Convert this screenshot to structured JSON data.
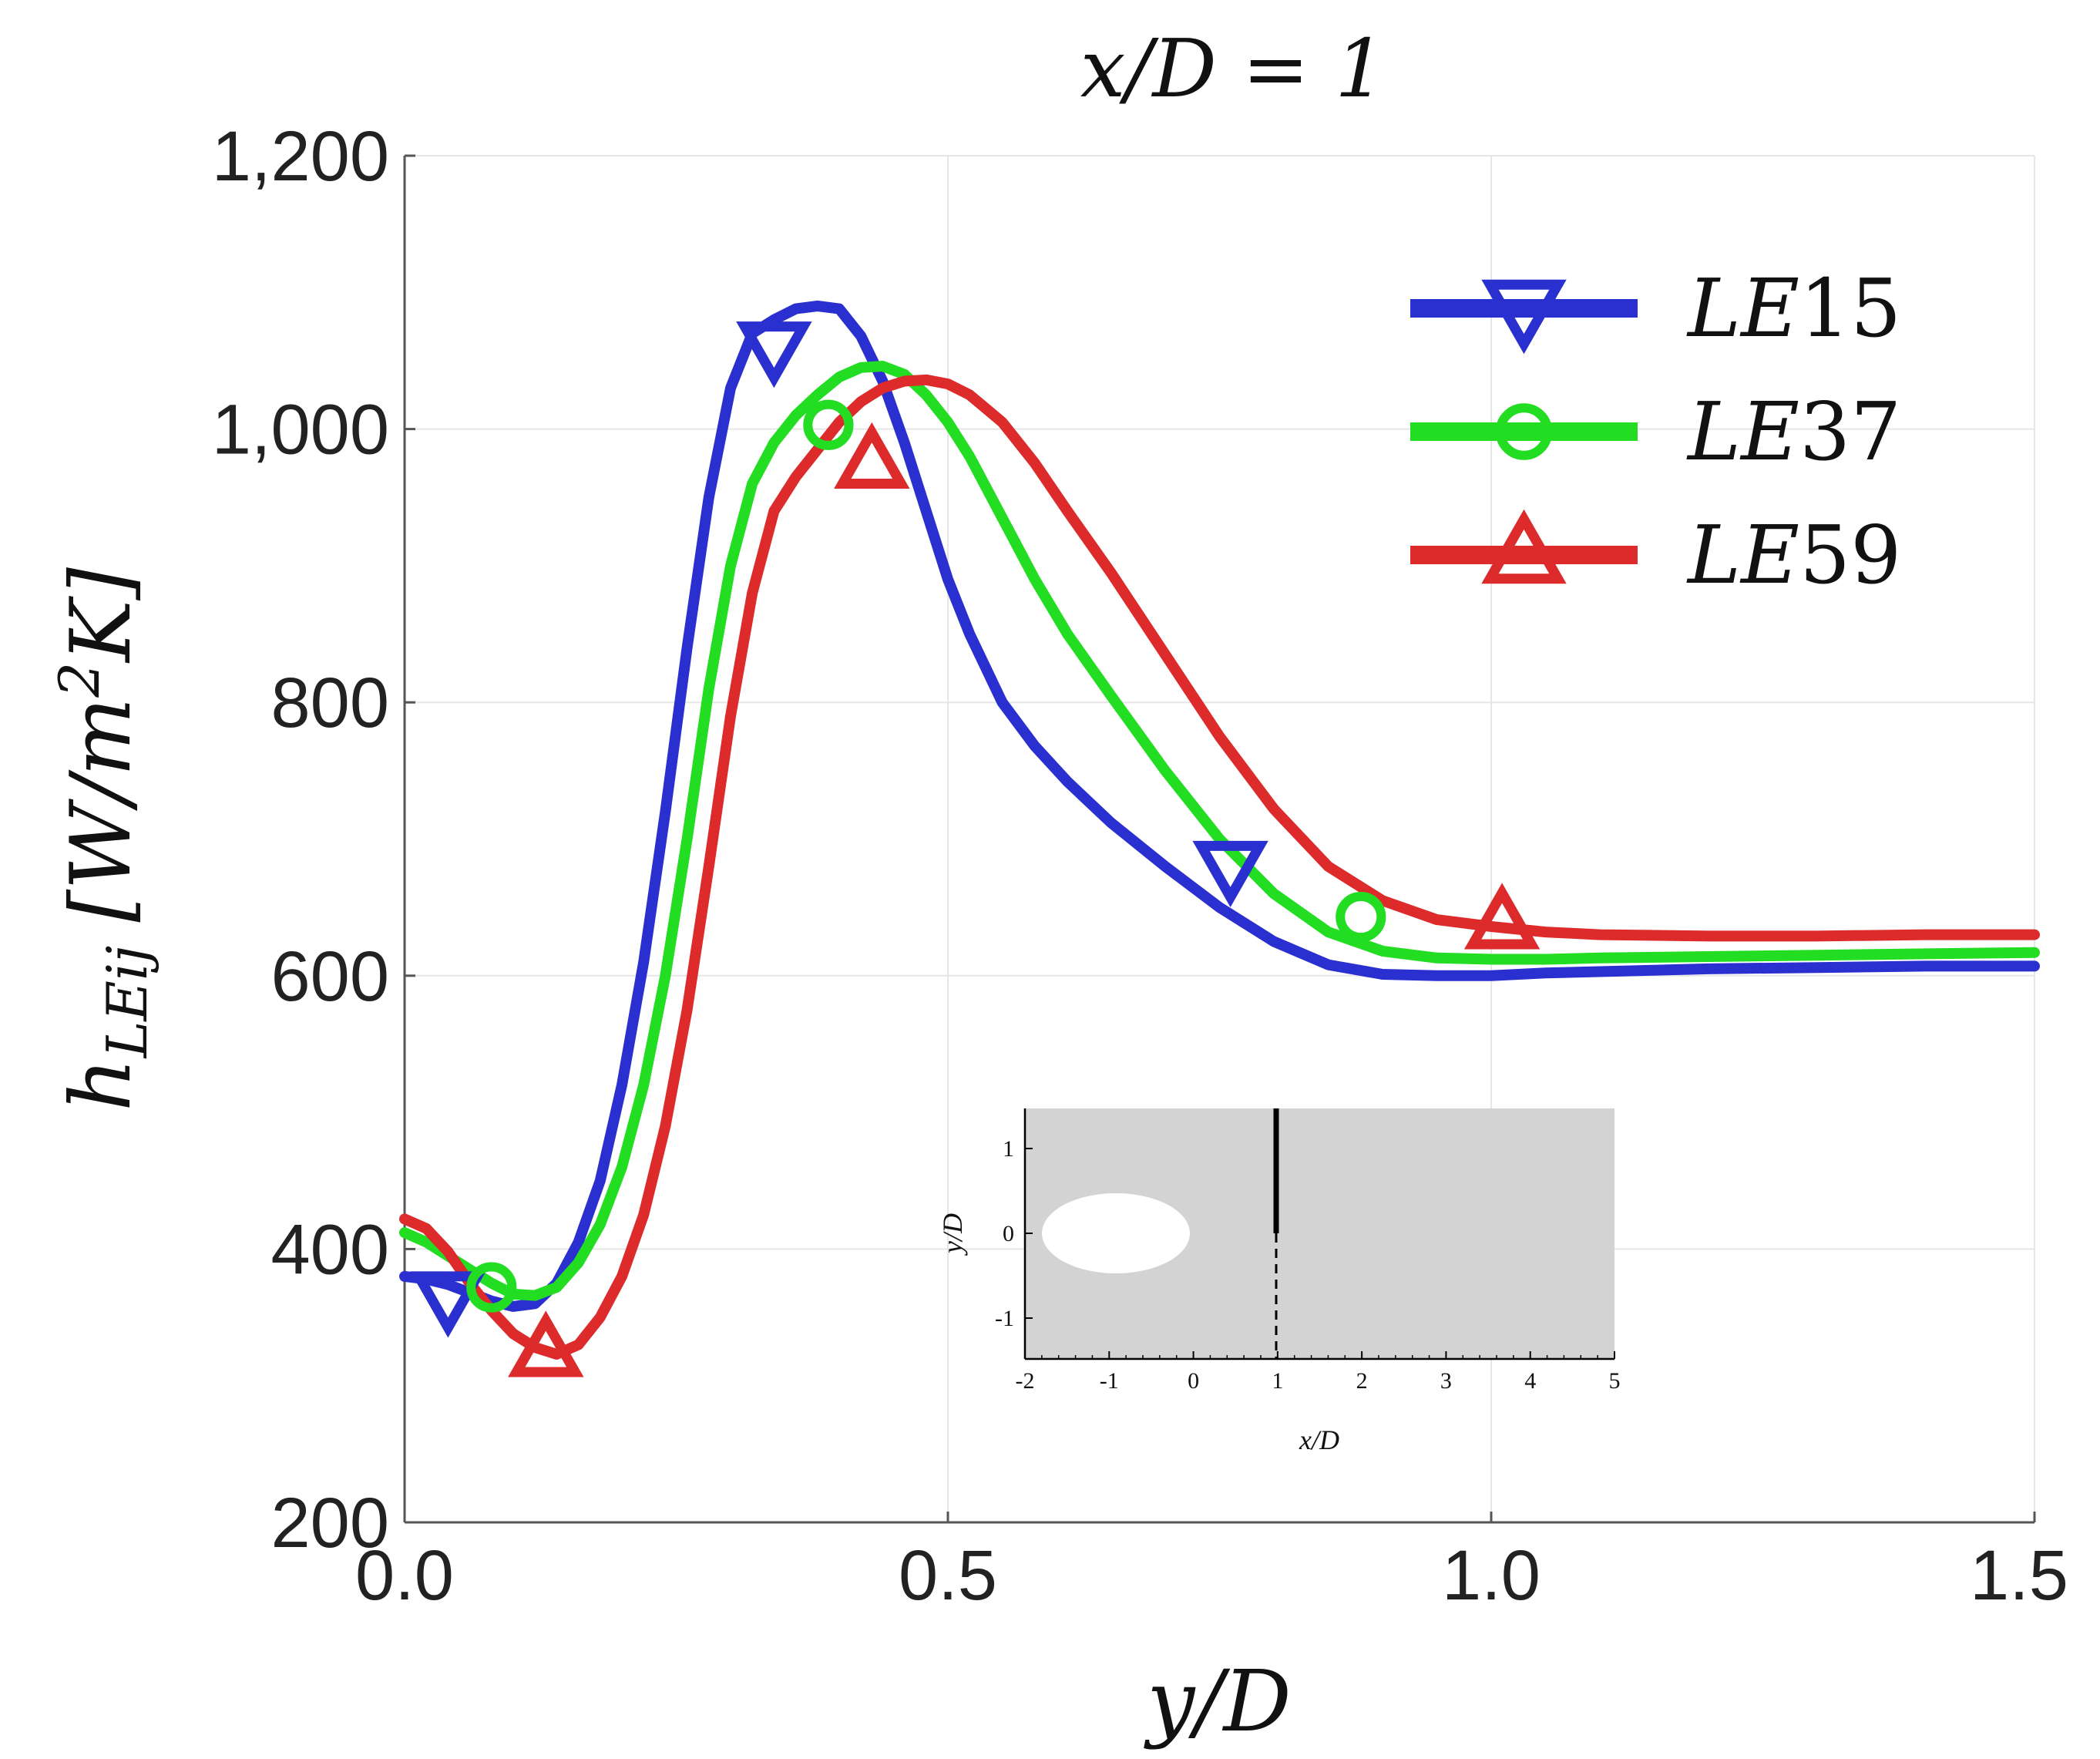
{
  "chart_data": {
    "type": "line",
    "title": "x/D = 1",
    "xlabel": "y/D",
    "ylabel": "h_LEij [W/m^2K]",
    "ylabel_parts": {
      "symbol": "h",
      "subscript": "LEij",
      "units": "[W/m",
      "units_power": "2",
      "units_end": "K]"
    },
    "xlim": [
      0,
      1.5
    ],
    "ylim": [
      200,
      1200
    ],
    "x_ticks": [
      0,
      0.5,
      1,
      1.5
    ],
    "x_tick_labels": [
      "0.0",
      "0.5",
      "1.0",
      "1.5"
    ],
    "y_ticks": [
      200,
      400,
      600,
      800,
      1000,
      1200
    ],
    "y_tick_labels": [
      "200",
      "400",
      "600",
      "800",
      "1,000",
      "1,200"
    ],
    "grid": true,
    "legend_position": "top-right",
    "series": [
      {
        "name": "LE15",
        "label_prefix": "LE",
        "label_number": "15",
        "color": "#2a2fd0",
        "marker": "triangle-down",
        "x": [
          0,
          0.02,
          0.04,
          0.06,
          0.08,
          0.1,
          0.12,
          0.14,
          0.16,
          0.18,
          0.2,
          0.22,
          0.24,
          0.26,
          0.28,
          0.3,
          0.32,
          0.34,
          0.36,
          0.38,
          0.4,
          0.42,
          0.44,
          0.46,
          0.48,
          0.5,
          0.52,
          0.55,
          0.58,
          0.61,
          0.65,
          0.7,
          0.75,
          0.8,
          0.85,
          0.9,
          0.95,
          1.0,
          1.05,
          1.1,
          1.2,
          1.3,
          1.4,
          1.5
        ],
        "y": [
          380,
          378,
          374,
          368,
          362,
          358,
          360,
          375,
          405,
          450,
          520,
          610,
          720,
          840,
          950,
          1030,
          1070,
          1080,
          1088,
          1090,
          1088,
          1068,
          1035,
          990,
          940,
          890,
          850,
          800,
          768,
          742,
          712,
          680,
          650,
          625,
          608,
          601,
          600,
          600,
          602,
          603,
          605,
          606,
          607,
          607
        ],
        "markers_x": [
          0.04,
          0.34,
          0.76
        ],
        "markers_y": [
          365,
          1060,
          680
        ]
      },
      {
        "name": "LE37",
        "label_prefix": "LE",
        "label_number": "37",
        "color": "#22dd22",
        "marker": "circle",
        "x": [
          0,
          0.02,
          0.04,
          0.06,
          0.08,
          0.1,
          0.12,
          0.14,
          0.16,
          0.18,
          0.2,
          0.22,
          0.24,
          0.26,
          0.28,
          0.3,
          0.32,
          0.34,
          0.36,
          0.38,
          0.4,
          0.42,
          0.44,
          0.46,
          0.48,
          0.5,
          0.52,
          0.55,
          0.58,
          0.61,
          0.65,
          0.7,
          0.75,
          0.8,
          0.85,
          0.9,
          0.95,
          1.0,
          1.05,
          1.1,
          1.2,
          1.3,
          1.4,
          1.5
        ],
        "y": [
          412,
          405,
          395,
          385,
          375,
          367,
          366,
          372,
          390,
          418,
          460,
          520,
          600,
          700,
          810,
          900,
          960,
          990,
          1010,
          1025,
          1038,
          1045,
          1046,
          1040,
          1025,
          1005,
          980,
          935,
          890,
          850,
          805,
          750,
          700,
          660,
          632,
          618,
          613,
          612,
          612,
          613,
          614,
          615,
          616,
          617
        ],
        "markers_x": [
          0.08,
          0.39,
          0.88
        ],
        "markers_y": [
          372,
          1003,
          643
        ]
      },
      {
        "name": "LE59",
        "label_prefix": "LE",
        "label_number": "59",
        "color": "#dd2a2a",
        "marker": "triangle-up",
        "x": [
          0,
          0.02,
          0.04,
          0.06,
          0.08,
          0.1,
          0.12,
          0.14,
          0.16,
          0.18,
          0.2,
          0.22,
          0.24,
          0.26,
          0.28,
          0.3,
          0.32,
          0.34,
          0.36,
          0.38,
          0.4,
          0.42,
          0.44,
          0.46,
          0.48,
          0.5,
          0.52,
          0.55,
          0.58,
          0.61,
          0.65,
          0.7,
          0.75,
          0.8,
          0.85,
          0.9,
          0.95,
          1.0,
          1.05,
          1.1,
          1.2,
          1.3,
          1.4,
          1.5
        ],
        "y": [
          422,
          415,
          398,
          375,
          355,
          338,
          328,
          323,
          330,
          350,
          380,
          425,
          490,
          575,
          680,
          790,
          880,
          940,
          965,
          985,
          1005,
          1020,
          1030,
          1035,
          1036,
          1033,
          1025,
          1005,
          975,
          940,
          895,
          835,
          775,
          722,
          680,
          655,
          641,
          636,
          632,
          630,
          629,
          629,
          630,
          630
        ],
        "markers_x": [
          0.13,
          0.43,
          1.01
        ],
        "markers_y": [
          325,
          975,
          638
        ]
      }
    ]
  },
  "inset": {
    "xlabel": "x/D",
    "ylabel": "y/D",
    "x_tick_labels": [
      "-2",
      "-1",
      "0",
      "1",
      "2",
      "3",
      "4",
      "5"
    ],
    "y_tick_labels": [
      "1",
      "0",
      "-1"
    ],
    "domain_color": "#d3d3d3",
    "cylinder_color": "#ffffff"
  }
}
